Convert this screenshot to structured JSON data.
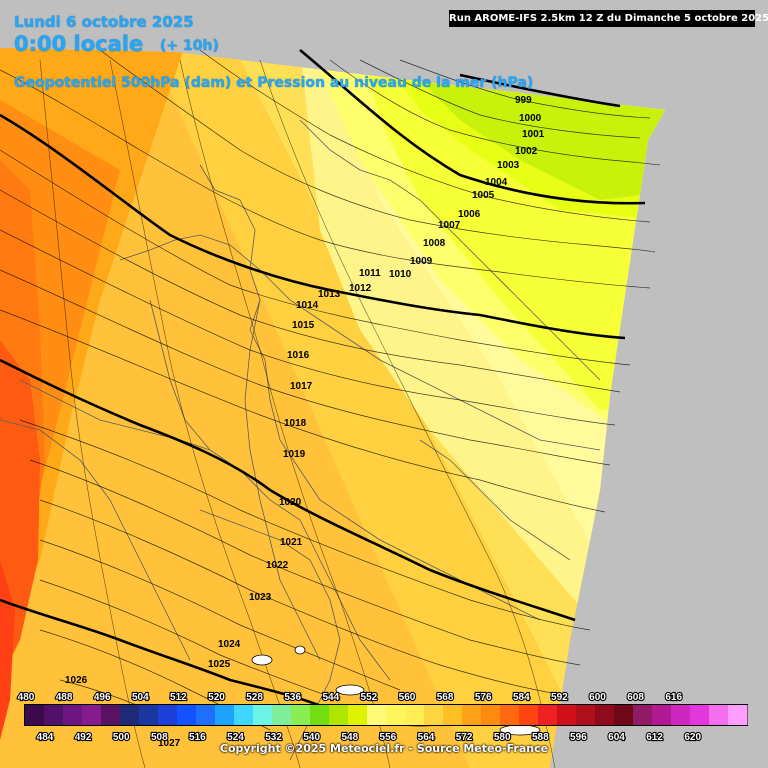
{
  "header": {
    "date": "Lundi 6 octobre 2025",
    "time": "0:00 locale",
    "lead": "(+ 10h)",
    "field": "Geopotentiel 500hPa (dam) et Pression au niveau de la mer (hPa)",
    "run": "Run AROME-IFS 2.5km 12 Z du Dimanche 5 octobre 2025"
  },
  "isobar_labels": [
    "999",
    "1000",
    "1001",
    "1002",
    "1003",
    "1004",
    "1005",
    "1006",
    "1007",
    "1008",
    "1009",
    "1010",
    "1011",
    "1012",
    "1013",
    "1014",
    "1015",
    "1016",
    "1017",
    "1018",
    "1019",
    "1020",
    "1021",
    "1022",
    "1023",
    "1024",
    "1025",
    "1026",
    "1027"
  ],
  "legend": {
    "top_values": [
      "480",
      "488",
      "496",
      "504",
      "512",
      "520",
      "528",
      "536",
      "544",
      "552",
      "560",
      "568",
      "576",
      "584",
      "592",
      "600",
      "608",
      "616"
    ],
    "bottom_values": [
      "484",
      "492",
      "500",
      "508",
      "516",
      "524",
      "532",
      "540",
      "548",
      "556",
      "564",
      "572",
      "580",
      "588",
      "596",
      "604",
      "612",
      "620"
    ],
    "colors": [
      "#3a0a4c",
      "#521068",
      "#6e1584",
      "#861a8f",
      "#5a1263",
      "#1c2a78",
      "#1c36a0",
      "#1c40d8",
      "#1452ff",
      "#1f6fff",
      "#1ea2ff",
      "#3fd6ff",
      "#6cf5e6",
      "#7fee9a",
      "#89ee53",
      "#72dd10",
      "#afe600",
      "#dff200",
      "#fffb78",
      "#fff65c",
      "#ffee55",
      "#ffd642",
      "#ffc025",
      "#ffa218",
      "#ff8a10",
      "#ff6a10",
      "#ff4410",
      "#ee2020",
      "#d01018",
      "#b0101c",
      "#8f0a1c",
      "#700718",
      "#8f1a66",
      "#b21a94",
      "#d026c0",
      "#e436dc",
      "#f56ef0",
      "#ff9eff"
    ]
  },
  "copyright": "Copyright ©2025 Meteociel.fr - Source Meteo-France"
}
